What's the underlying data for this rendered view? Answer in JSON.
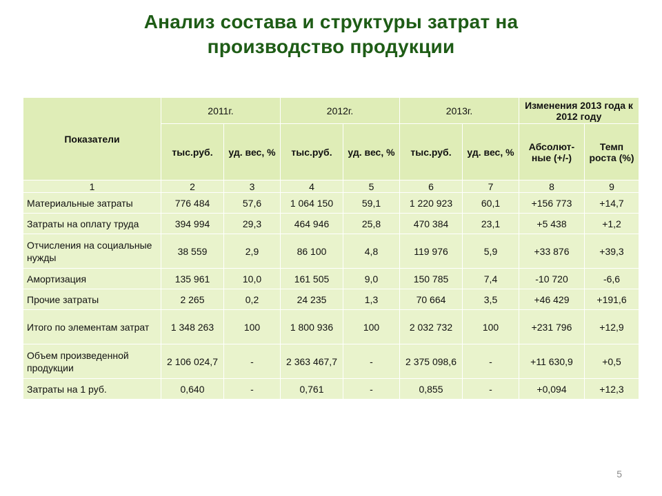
{
  "title": {
    "line1": "Анализ состава и структуры затрат на",
    "line2": "производство продукции"
  },
  "table": {
    "header": {
      "indicator": "Показатели",
      "year_2011": "2011г.",
      "year_2012": "2012г.",
      "year_2013": "2013г.",
      "changes": "Изменения 2013 года к 2012 году",
      "thousand_rub": "тыс.руб.",
      "share": "уд. вес, %",
      "absolute": "Абсолют-ные (+/-)",
      "growth_rate": "Темп роста (%)"
    },
    "col_numbers": [
      "1",
      "2",
      "3",
      "4",
      "5",
      "6",
      "7",
      "8",
      "9"
    ],
    "rows": [
      {
        "label": "Материальные затраты",
        "values": [
          "776 484",
          "57,6",
          "1 064 150",
          "59,1",
          "1 220 923",
          "60,1",
          "+156 773",
          "+14,7"
        ]
      },
      {
        "label": "Затраты на оплату труда",
        "values": [
          "394 994",
          "29,3",
          "464 946",
          "25,8",
          "470 384",
          "23,1",
          "+5 438",
          "+1,2"
        ]
      },
      {
        "label": "Отчисления на социальные нужды",
        "values": [
          "38 559",
          "2,9",
          "86 100",
          "4,8",
          "119 976",
          "5,9",
          "+33 876",
          "+39,3"
        ]
      },
      {
        "label": "Амортизация",
        "values": [
          "135 961",
          "10,0",
          "161 505",
          "9,0",
          "150 785",
          "7,4",
          "-10 720",
          "-6,6"
        ]
      },
      {
        "label": "Прочие затраты",
        "values": [
          "2 265",
          "0,2",
          "24 235",
          "1,3",
          "70 664",
          "3,5",
          "+46 429",
          "+191,6"
        ]
      },
      {
        "label": "Итого по элементам затрат",
        "values": [
          "1 348 263",
          "100",
          "1 800 936",
          "100",
          "2 032 732",
          "100",
          "+231 796",
          "+12,9"
        ]
      },
      {
        "label": "Объем произведенной продукции",
        "values": [
          "2 106 024,7",
          "-",
          "2 363 467,7",
          "-",
          "2 375 098,6",
          "-",
          "+11 630,9",
          "+0,5"
        ]
      },
      {
        "label": "Затраты на 1 руб.",
        "values": [
          "0,640",
          "-",
          "0,761",
          "-",
          "0,855",
          "-",
          "+0,094",
          "+12,3"
        ]
      }
    ]
  },
  "page_number": "5"
}
